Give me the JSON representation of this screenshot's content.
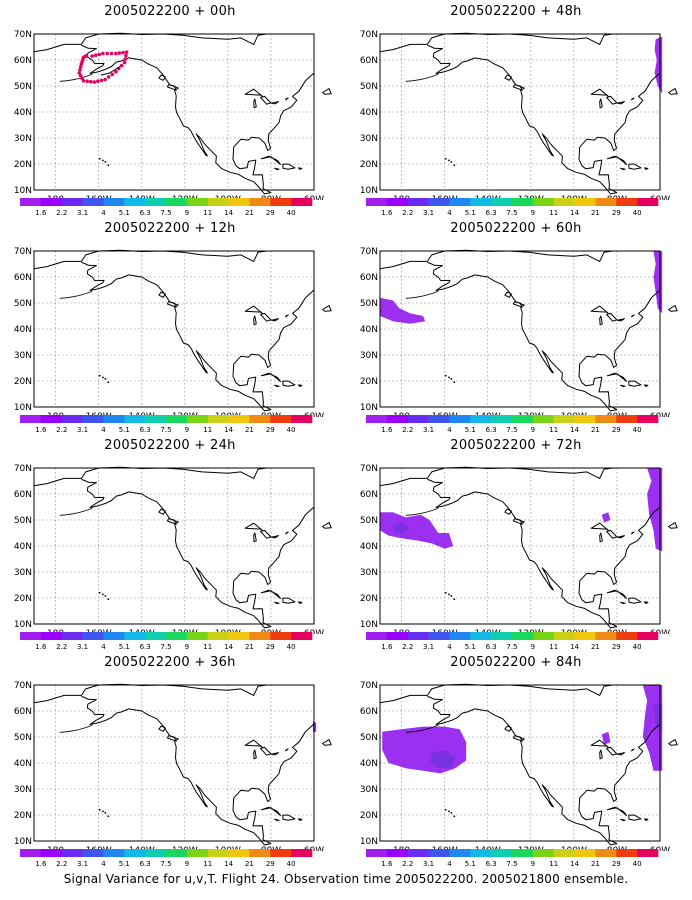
{
  "caption": "Signal Variance for u,v,T. Flight 24. Observation time 2005022200. 2005021800 ensemble.",
  "map": {
    "lat_ticks": [
      "70N",
      "60N",
      "50N",
      "40N",
      "30N",
      "20N",
      "10N"
    ],
    "lon_ticks": [
      "180",
      "160W",
      "140W",
      "120W",
      "100W",
      "80W",
      "60W"
    ],
    "lon_range": [
      -190,
      -60
    ],
    "lat_range": [
      10,
      70
    ]
  },
  "colorbar": {
    "labels": [
      "1.6",
      "2.2",
      "3.1",
      "4",
      "5.1",
      "6.3",
      "7.5",
      "9",
      "11",
      "14",
      "21",
      "29",
      "40"
    ],
    "colors": [
      "#9b00ff",
      "#6a2cf0",
      "#3f55ee",
      "#1f88f0",
      "#12b8e6",
      "#10cfb0",
      "#1ad75e",
      "#79d317",
      "#c8d115",
      "#f0c70e",
      "#f08a12",
      "#ee3c10",
      "#e8005f"
    ]
  },
  "panels": [
    {
      "title": "2005022200 + 00h",
      "col": 0,
      "row": 0,
      "fields": [],
      "dots": true
    },
    {
      "title": "2005022200 + 12h",
      "col": 0,
      "row": 1,
      "fields": []
    },
    {
      "title": "2005022200 + 24h",
      "col": 0,
      "row": 2,
      "fields": []
    },
    {
      "title": "2005022200 + 36h",
      "col": 0,
      "row": 3,
      "fields": [
        {
          "color": "#9b30f0",
          "coords": [
            [
              -60.5,
              56
            ],
            [
              -59,
              55.5
            ],
            [
              -59,
              52
            ],
            [
              -60.5,
              52
            ]
          ]
        }
      ]
    },
    {
      "title": "2005022200 + 48h",
      "col": 1,
      "row": 0,
      "fields": [
        {
          "color": "#9b30f0",
          "coords": [
            [
              -62,
              68
            ],
            [
              -59,
              69
            ],
            [
              -59,
              47
            ],
            [
              -61,
              50
            ],
            [
              -62.5,
              55
            ],
            [
              -61.5,
              60
            ],
            [
              -62.5,
              64
            ]
          ]
        }
      ]
    },
    {
      "title": "2005022200 + 60h",
      "col": 1,
      "row": 1,
      "fields": [
        {
          "color": "#9b30f0",
          "coords": [
            [
              -190,
              52
            ],
            [
              -184,
              51
            ],
            [
              -181,
              48
            ],
            [
              -176,
              46
            ],
            [
              -170,
              45
            ],
            [
              -169,
              43
            ],
            [
              -176,
              42
            ],
            [
              -184,
              43
            ],
            [
              -190,
              45
            ]
          ]
        },
        {
          "color": "#9b30f0",
          "coords": [
            [
              -63,
              70
            ],
            [
              -59,
              70
            ],
            [
              -59,
              46
            ],
            [
              -61,
              48
            ],
            [
              -62,
              54
            ],
            [
              -63,
              60
            ],
            [
              -62,
              65
            ]
          ]
        }
      ]
    },
    {
      "title": "2005022200 + 72h",
      "col": 1,
      "row": 2,
      "fields": [
        {
          "color": "#9b30f0",
          "coords": [
            [
              -190,
              53
            ],
            [
              -184,
              53
            ],
            [
              -178,
              51
            ],
            [
              -171,
              52
            ],
            [
              -167,
              50
            ],
            [
              -163,
              45
            ],
            [
              -158,
              45
            ],
            [
              -156,
              40
            ],
            [
              -160,
              39
            ],
            [
              -166,
              41
            ],
            [
              -172,
              42
            ],
            [
              -180,
              43
            ],
            [
              -186,
              44
            ],
            [
              -190,
              46
            ]
          ]
        },
        {
          "color": "#7a32e0",
          "coords": [
            [
              -184,
              48
            ],
            [
              -180,
              49
            ],
            [
              -176,
              47
            ],
            [
              -179,
              45
            ],
            [
              -183,
              45
            ]
          ]
        },
        {
          "color": "#9b30f0",
          "coords": [
            [
              -87,
              52
            ],
            [
              -84,
              53
            ],
            [
              -83,
              50
            ],
            [
              -86,
              49
            ]
          ]
        },
        {
          "color": "#9b30f0",
          "coords": [
            [
              -66,
              70
            ],
            [
              -59,
              70
            ],
            [
              -59,
              38
            ],
            [
              -62,
              39
            ],
            [
              -63,
              46
            ],
            [
              -65,
              52
            ],
            [
              -66,
              60
            ],
            [
              -64,
              65
            ]
          ]
        }
      ]
    },
    {
      "title": "2005022200 + 84h",
      "col": 1,
      "row": 3,
      "fields": [
        {
          "color": "#9b30f0",
          "coords": [
            [
              -189,
              52
            ],
            [
              -180,
              53
            ],
            [
              -170,
              54
            ],
            [
              -160,
              54
            ],
            [
              -153,
              53
            ],
            [
              -150,
              48
            ],
            [
              -150,
              41
            ],
            [
              -155,
              38
            ],
            [
              -162,
              36
            ],
            [
              -170,
              37
            ],
            [
              -178,
              38
            ],
            [
              -186,
              40
            ],
            [
              -189,
              45
            ]
          ]
        },
        {
          "color": "#7a32e0",
          "coords": [
            [
              -166,
              44
            ],
            [
              -160,
              45
            ],
            [
              -155,
              42
            ],
            [
              -157,
              38
            ],
            [
              -164,
              38
            ],
            [
              -167,
              41
            ]
          ]
        },
        {
          "color": "#9b30f0",
          "coords": [
            [
              -87,
              51
            ],
            [
              -84,
              52
            ],
            [
              -83,
              48
            ],
            [
              -86,
              47
            ]
          ]
        },
        {
          "color": "#9b30f0",
          "coords": [
            [
              -68,
              70
            ],
            [
              -59,
              70
            ],
            [
              -59,
              37
            ],
            [
              -63,
              37
            ],
            [
              -65,
              44
            ],
            [
              -68,
              50
            ],
            [
              -67,
              58
            ],
            [
              -66,
              64
            ]
          ]
        },
        {
          "color": "#7a32e0",
          "coords": [
            [
              -63,
              62
            ],
            [
              -59,
              63
            ],
            [
              -59,
              52
            ],
            [
              -62,
              54
            ]
          ]
        }
      ]
    }
  ]
}
